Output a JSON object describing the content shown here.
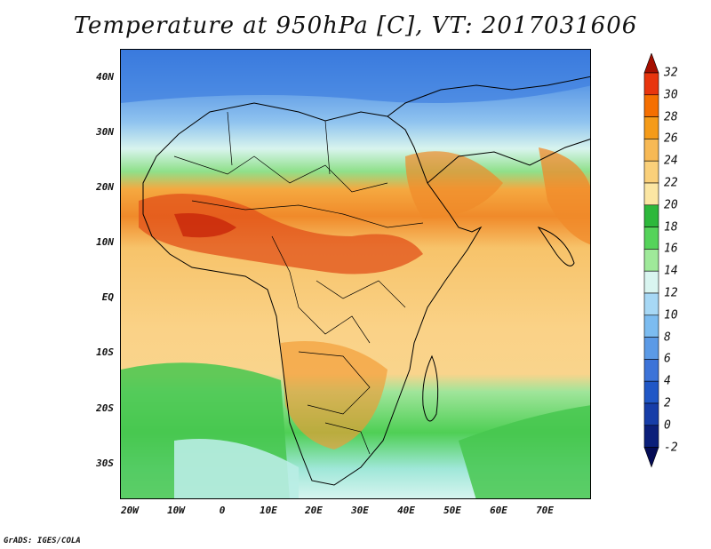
{
  "title": "Temperature at 950hPa [C], VT: 2017031606",
  "credit": "GrADS: IGES/COLA",
  "map": {
    "lat_labels": [
      "40N",
      "30N",
      "20N",
      "10N",
      "EQ",
      "10S",
      "20S",
      "30S"
    ],
    "lon_labels": [
      "20W",
      "10W",
      "0",
      "10E",
      "20E",
      "30E",
      "40E",
      "50E",
      "60E",
      "70E"
    ]
  },
  "colorbar": {
    "levels": [
      "32",
      "30",
      "28",
      "26",
      "24",
      "22",
      "20",
      "18",
      "16",
      "14",
      "12",
      "10",
      "8",
      "6",
      "4",
      "2",
      "0",
      "-2"
    ],
    "colors": [
      "#a50f00",
      "#e8350d",
      "#f56f00",
      "#f59b19",
      "#f7b955",
      "#fad07a",
      "#fbe6a3",
      "#2db83b",
      "#55d35a",
      "#9fe99a",
      "#d9f5f0",
      "#a7d8f5",
      "#7cbcf0",
      "#5b9ae6",
      "#3c73d8",
      "#2057c6",
      "#163da8",
      "#0b1f7a",
      "#050c55"
    ]
  }
}
